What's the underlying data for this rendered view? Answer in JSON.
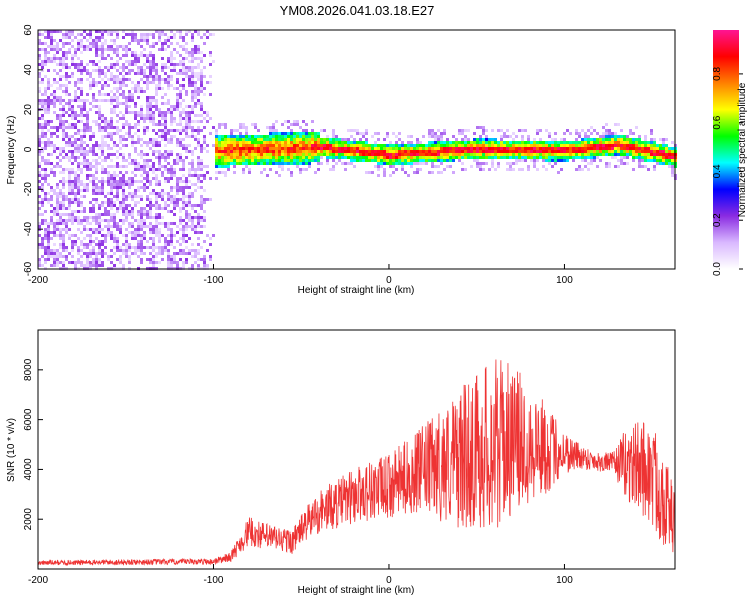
{
  "figure": {
    "title": "YM08.2026.041.03.18.E27"
  },
  "chart_data": [
    {
      "type": "heatmap",
      "title": "YM08.2026.041.03.18.E27",
      "xlabel": "Height of straight line (km)",
      "ylabel": "Frequency (Hz)",
      "xlim": [
        -200,
        163
      ],
      "ylim": [
        -60,
        60
      ],
      "x_ticks": [
        "-200",
        "-100",
        "0",
        "100"
      ],
      "x_tick_values": [
        -200,
        -100,
        0,
        100
      ],
      "y_ticks": [
        "-60",
        "-40",
        "-20",
        "0",
        "20",
        "40",
        "60"
      ],
      "y_tick_values": [
        -60,
        -40,
        -20,
        0,
        20,
        40,
        60
      ],
      "colorbar": {
        "label": "Normalized spectral amplitude",
        "range": [
          0,
          0.98
        ],
        "ticks": [
          "0.0",
          "0.2",
          "0.4",
          "0.6",
          "0.8"
        ],
        "tick_values": [
          0,
          0.2,
          0.4,
          0.6,
          0.8
        ],
        "colormap": [
          "#ffffff",
          "#d9b8ff",
          "#8a2be2",
          "#0000ff",
          "#00ffff",
          "#00ff00",
          "#ffff00",
          "#ff8000",
          "#ff0000",
          "#ff1493"
        ]
      },
      "features": {
        "noise_region_x": [
          -200,
          -100
        ],
        "signal_band_start_x": -100,
        "signal_center_x": [
          -100,
          -60,
          -40,
          0,
          50,
          100,
          130,
          163
        ],
        "signal_center_freq": [
          0,
          1,
          2,
          -2,
          1,
          0,
          3,
          -3
        ]
      }
    },
    {
      "type": "line",
      "xlabel": "Height of straight line (km)",
      "ylabel": "SNR (10 * v/v)",
      "xlim": [
        -200,
        163
      ],
      "ylim": [
        0,
        9600
      ],
      "x_ticks": [
        "-200",
        "-100",
        "0",
        "100"
      ],
      "x_tick_values": [
        -200,
        -100,
        0,
        100
      ],
      "y_ticks": [
        "2000",
        "4000",
        "6000",
        "8000"
      ],
      "y_tick_values": [
        2000,
        4000,
        6000,
        8000
      ],
      "series": [
        {
          "name": "SNR",
          "color": "#ee3333",
          "envelope_x": [
            -200,
            -100,
            -90,
            -80,
            -70,
            -55,
            -50,
            -40,
            -30,
            -15,
            0,
            10,
            20,
            30,
            40,
            50,
            60,
            70,
            80,
            90,
            100,
            110,
            120,
            128,
            135,
            145,
            155,
            163
          ],
          "envelope_mean": [
            250,
            300,
            500,
            1500,
            1300,
            1100,
            1600,
            2300,
            2600,
            3100,
            3300,
            3700,
            4000,
            4200,
            4400,
            4800,
            5000,
            5200,
            5100,
            4800,
            4700,
            4500,
            4300,
            4300,
            4200,
            4100,
            3200,
            1800
          ],
          "envelope_amp": [
            100,
            120,
            200,
            600,
            550,
            500,
            600,
            900,
            1000,
            1200,
            1300,
            1500,
            1800,
            2300,
            2800,
            3200,
            3600,
            3000,
            2500,
            1800,
            900,
            500,
            400,
            400,
            1500,
            2000,
            2200,
            1200
          ]
        }
      ]
    }
  ]
}
